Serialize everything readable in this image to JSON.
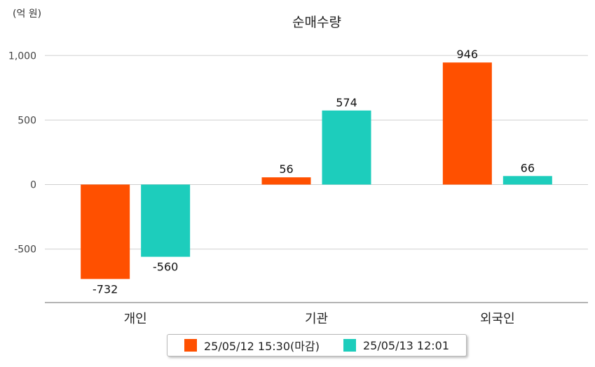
{
  "chart_data": {
    "type": "bar",
    "title": "순매수량",
    "unit_label": "(억 원)",
    "categories": [
      "개인",
      "기관",
      "외국인"
    ],
    "series": [
      {
        "name": "25/05/12 15:30(마감)",
        "color": "#FF5000",
        "values": [
          -732,
          56,
          946
        ]
      },
      {
        "name": "25/05/13 12:01",
        "color": "#1DCDBC",
        "values": [
          -560,
          574,
          66
        ]
      }
    ],
    "yticks": [
      "1,000",
      "500",
      "0",
      "-500"
    ],
    "ytick_values": [
      1000,
      500,
      0,
      -500
    ],
    "ylim": [
      -910,
      1000
    ],
    "grid": true,
    "legend_position": "bottom"
  }
}
